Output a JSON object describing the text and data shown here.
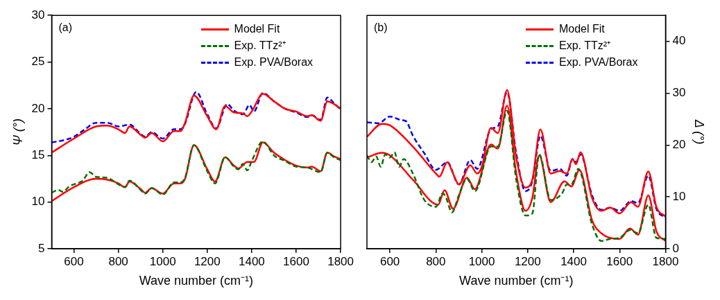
{
  "chart_data": [
    {
      "type": "line",
      "annotations": [
        "(a)"
      ],
      "xlabel": "Wave number (cm⁻¹)",
      "ylabel": "Ψ (°)",
      "xlim": [
        500,
        1800
      ],
      "xticks": [
        600,
        800,
        1000,
        1200,
        1400,
        1600,
        1800
      ],
      "ylim": [
        5,
        30
      ],
      "yticks": [
        5,
        10,
        15,
        20,
        25,
        30
      ],
      "grid": false,
      "legend": "top right",
      "marker": "none",
      "series": [
        {
          "name": "Model Fit",
          "color": "#ff0000",
          "line_style": "solid",
          "x": [
            500,
            600,
            700,
            750,
            800,
            830,
            850,
            900,
            920,
            950,
            1000,
            1050,
            1080,
            1100,
            1140,
            1200,
            1240,
            1280,
            1320,
            1360,
            1380,
            1400,
            1450,
            1500,
            1550,
            1600,
            1650,
            1670,
            1710,
            1740,
            1770,
            1800
          ],
          "values": [
            15.3,
            16.8,
            18.1,
            18.2,
            17.8,
            17.4,
            18.1,
            17.2,
            16.9,
            17.4,
            16.5,
            17.6,
            17.6,
            18.5,
            21.4,
            19.2,
            17.8,
            20.3,
            19.6,
            19.5,
            19.2,
            19.7,
            21.6,
            20.8,
            20.0,
            19.7,
            19.2,
            19.3,
            18.7,
            20.8,
            20.5,
            20.0
          ]
        },
        {
          "name": "Exp. TTz²⁺",
          "color": "#007000",
          "line_style": "dashed",
          "x": [
            500,
            530,
            550,
            580,
            600,
            640,
            670,
            700,
            750,
            800,
            830,
            850,
            900,
            920,
            950,
            1000,
            1050,
            1080,
            1100,
            1140,
            1200,
            1235,
            1280,
            1320,
            1340,
            1360,
            1380,
            1400,
            1450,
            1500,
            1550,
            1600,
            1650,
            1710,
            1740,
            1770,
            1800
          ],
          "values": [
            11.0,
            11.3,
            11.1,
            11.7,
            11.9,
            12.3,
            13.2,
            12.7,
            12.6,
            11.9,
            11.6,
            12.3,
            11.3,
            10.9,
            11.5,
            10.8,
            12.1,
            12.1,
            12.6,
            16.1,
            13.3,
            12.0,
            14.8,
            13.8,
            13.5,
            14.1,
            13.4,
            14.4,
            16.5,
            15.0,
            14.4,
            13.8,
            13.7,
            13.2,
            15.3,
            14.8,
            14.5
          ]
        },
        {
          "name": "Exp. PVA/Borax",
          "color": "#0000ee",
          "line_style": "dashed",
          "x": [
            500,
            550,
            600,
            650,
            700,
            750,
            800,
            850,
            900,
            920,
            950,
            1000,
            1050,
            1080,
            1100,
            1150,
            1200,
            1240,
            1290,
            1320,
            1360,
            1390,
            1410,
            1450,
            1500,
            1550,
            1600,
            1650,
            1670,
            1710,
            1740,
            1770,
            1800
          ],
          "values": [
            16.4,
            16.6,
            17.0,
            17.8,
            18.5,
            18.5,
            18.1,
            18.3,
            17.3,
            17.0,
            17.5,
            16.8,
            17.8,
            17.8,
            18.4,
            21.8,
            19.4,
            17.9,
            20.5,
            19.8,
            19.4,
            20.4,
            19.7,
            21.7,
            20.8,
            20.0,
            19.6,
            19.1,
            19.3,
            18.8,
            21.2,
            20.6,
            19.9
          ]
        },
        {
          "color": "#ff0000",
          "line_style": "solid",
          "x": [
            500,
            600,
            700,
            750,
            800,
            830,
            850,
            900,
            920,
            950,
            1000,
            1050,
            1080,
            1100,
            1140,
            1200,
            1235,
            1280,
            1320,
            1340,
            1380,
            1410,
            1450,
            1500,
            1550,
            1600,
            1650,
            1670,
            1710,
            1740,
            1770,
            1800
          ],
          "values": [
            10.1,
            11.6,
            12.5,
            12.4,
            12.0,
            11.6,
            12.2,
            11.4,
            11.0,
            11.5,
            10.9,
            12.0,
            12.0,
            12.5,
            16.1,
            13.5,
            12.2,
            14.8,
            13.9,
            13.6,
            14.3,
            14.3,
            16.4,
            15.3,
            14.5,
            13.9,
            13.7,
            13.8,
            13.3,
            15.3,
            14.9,
            14.6
          ]
        }
      ]
    },
    {
      "type": "line",
      "annotations": [
        "(b)"
      ],
      "xlabel": "Wave number (cm⁻¹)",
      "y2label": "Δ (°)",
      "xlim": [
        500,
        1800
      ],
      "xticks": [
        600,
        800,
        1000,
        1200,
        1400,
        1600,
        1800
      ],
      "y2lim": [
        0,
        45
      ],
      "y2ticks": [
        0,
        10,
        20,
        30,
        40
      ],
      "grid": false,
      "legend": "top right",
      "marker": "none",
      "series": [
        {
          "name": "Model Fit",
          "color": "#ff0000",
          "line_style": "solid",
          "axis": "y2",
          "x": [
            500,
            565,
            600,
            700,
            800,
            815,
            850,
            875,
            900,
            950,
            980,
            1000,
            1040,
            1070,
            1110,
            1150,
            1190,
            1220,
            1255,
            1300,
            1340,
            1370,
            1395,
            1410,
            1430,
            1480,
            1520,
            1560,
            1600,
            1650,
            1680,
            1725,
            1760,
            1800
          ],
          "values": [
            21.6,
            24.1,
            23.8,
            19.7,
            14.5,
            13.9,
            16.7,
            14.5,
            12.4,
            16.1,
            14.5,
            15.8,
            23.3,
            22.3,
            30.6,
            17.6,
            11.8,
            13.3,
            23.0,
            14.5,
            15.0,
            14.5,
            17.3,
            16.3,
            18.6,
            9.8,
            7.3,
            7.9,
            6.8,
            9.0,
            8.1,
            14.9,
            8.1,
            6.2
          ]
        },
        {
          "name": "Exp. TTz²⁺",
          "color": "#007000",
          "line_style": "dashed",
          "axis": "y2",
          "x": [
            500,
            520,
            540,
            560,
            580,
            600,
            620,
            640,
            660,
            700,
            750,
            800,
            830,
            845,
            870,
            900,
            935,
            970,
            1040,
            1070,
            1110,
            1150,
            1190,
            1220,
            1250,
            1300,
            1350,
            1370,
            1390,
            1420,
            1480,
            1520,
            1560,
            1600,
            1645,
            1680,
            1725,
            1760,
            1800
          ],
          "values": [
            18.0,
            16.7,
            17.8,
            15.8,
            18.2,
            17.6,
            18.6,
            15.8,
            17.3,
            14.5,
            9.4,
            8.1,
            10.7,
            9.8,
            7.0,
            10.3,
            13.5,
            11.1,
            19.7,
            19.7,
            26.6,
            13.3,
            6.4,
            6.8,
            18.2,
            9.4,
            10.7,
            12.4,
            12.4,
            15.4,
            4.7,
            1.5,
            1.9,
            2.1,
            3.6,
            3.0,
            8.5,
            2.1,
            1.9
          ]
        },
        {
          "name": "Exp. PVA/Borax",
          "color": "#0000ee",
          "line_style": "dashed",
          "axis": "y2",
          "x": [
            500,
            550,
            600,
            650,
            670,
            700,
            750,
            800,
            850,
            900,
            950,
            980,
            1040,
            1070,
            1110,
            1150,
            1190,
            1220,
            1255,
            1300,
            1340,
            1370,
            1395,
            1410,
            1430,
            1480,
            1520,
            1560,
            1600,
            1650,
            1680,
            1725,
            1760,
            1800
          ],
          "values": [
            24.4,
            24.2,
            25.5,
            24.8,
            24.6,
            21.8,
            18.4,
            15.2,
            16.7,
            12.4,
            17.1,
            15.4,
            23.1,
            23.6,
            30.2,
            18.4,
            11.1,
            13.0,
            21.8,
            15.0,
            15.4,
            14.1,
            17.3,
            16.7,
            18.2,
            10.3,
            7.5,
            7.9,
            7.3,
            9.2,
            8.8,
            14.1,
            7.7,
            6.0
          ]
        },
        {
          "color": "#ff0000",
          "line_style": "solid",
          "axis": "y2",
          "x": [
            500,
            565,
            600,
            700,
            810,
            838,
            875,
            935,
            970,
            1040,
            1070,
            1110,
            1150,
            1190,
            1220,
            1250,
            1300,
            1360,
            1390,
            1425,
            1480,
            1520,
            1600,
            1645,
            1680,
            1725,
            1760,
            1800
          ],
          "values": [
            17.6,
            18.5,
            18.0,
            13.3,
            8.5,
            11.3,
            7.7,
            13.7,
            11.5,
            20.1,
            19.3,
            27.6,
            14.5,
            7.3,
            9.8,
            18.0,
            9.0,
            13.0,
            12.0,
            15.2,
            5.5,
            3.0,
            1.9,
            3.9,
            2.7,
            10.3,
            3.4,
            1.5
          ]
        }
      ]
    }
  ]
}
